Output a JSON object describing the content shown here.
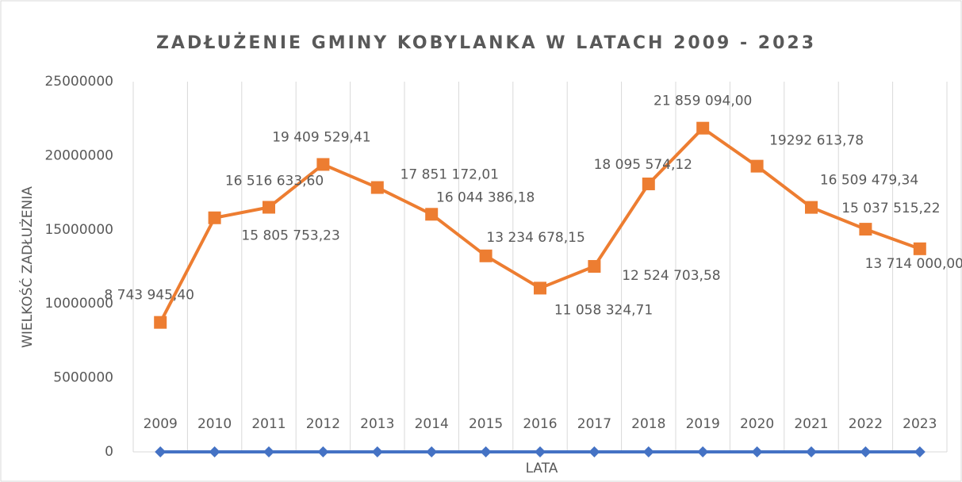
{
  "chart_data": {
    "type": "line",
    "title": "ZADŁUŻENIE GMINY KOBYLANKA W LATACH 2009 - 2023",
    "x_label": "LATA",
    "y_label": "WIELKOŚĆ ZADŁUŻENIA",
    "categories": [
      null,
      null,
      null,
      null,
      null,
      null,
      null,
      null,
      null,
      null,
      null,
      null,
      null,
      null,
      null
    ],
    "series": [
      {
        "color": "#4472c4",
        "marker": "diamond",
        "values": [
          2009,
          2010,
          2011,
          2012,
          2013,
          2014,
          2015,
          2016,
          2017,
          2018,
          2019,
          2020,
          2021,
          2022,
          2023
        ]
      },
      {
        "color": "#ed7d31",
        "marker": "square",
        "values": [
          8743945.4,
          15805753.23,
          16516633.6,
          19409529.41,
          17851172.01,
          16044386.18,
          13234678.15,
          11058324.71,
          12524703.58,
          18095574.12,
          21859094.0,
          19292613.78,
          16509479.34,
          15037515.22,
          13714000.0
        ],
        "value_labels": [
          "8 743 945,40",
          "15 805 753,23",
          "16 516 633,60",
          "19 409 529,41",
          "17 851 172,01",
          "16 044 386,18",
          "13 234 678,15",
          "11 058 324,71",
          "12 524 703,58",
          "18 095 574,12",
          "21 859 094,00",
          "19292 613,78",
          "16 509 479,34",
          "15 037 515,22",
          "13 714 000,00"
        ]
      }
    ],
    "ylim": [
      0,
      25000000
    ],
    "yticks": [
      0,
      5000000,
      10000000,
      15000000,
      20000000,
      25000000
    ],
    "grid": "vertical"
  }
}
